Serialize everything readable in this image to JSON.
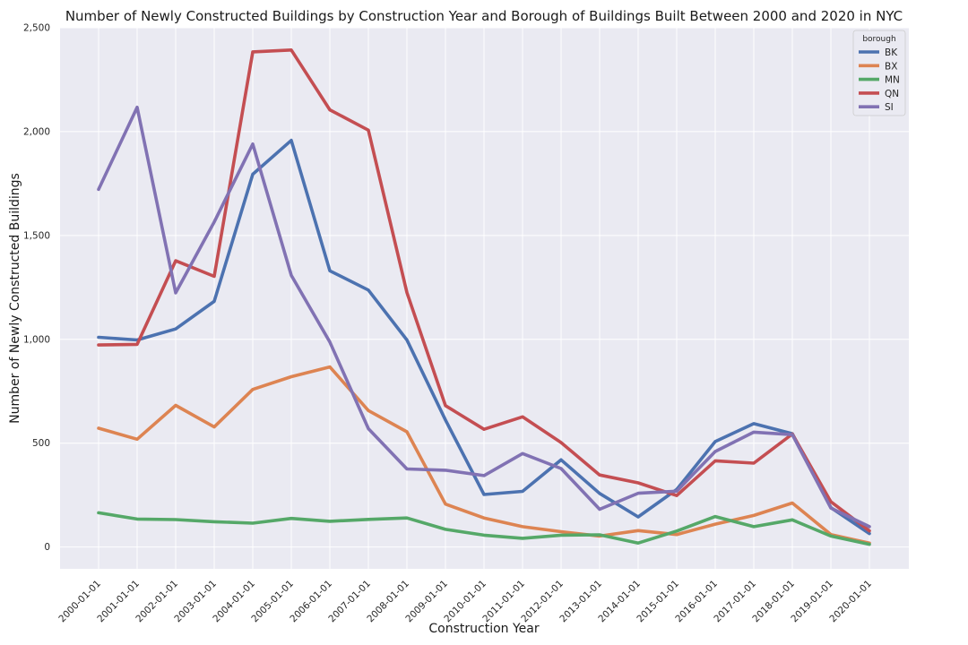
{
  "chart_data": {
    "type": "line",
    "title": "Number of Newly Constructed Buildings by Construction Year and Borough of Buildings Built Between 2000 and 2020 in NYC",
    "xlabel": "Construction Year",
    "ylabel": "Number of Newly Constructed Buildings",
    "categories": [
      "2000-01-01",
      "2001-01-01",
      "2002-01-01",
      "2003-01-01",
      "2004-01-01",
      "2005-01-01",
      "2006-01-01",
      "2007-01-01",
      "2008-01-01",
      "2009-01-01",
      "2010-01-01",
      "2011-01-01",
      "2012-01-01",
      "2013-01-01",
      "2014-01-01",
      "2015-01-01",
      "2016-01-01",
      "2017-01-01",
      "2018-01-01",
      "2019-01-01",
      "2020-01-01"
    ],
    "ylim": [
      -105,
      2500
    ],
    "yticks": [
      0,
      500,
      1000,
      1500,
      2000,
      2500
    ],
    "ytick_labels": [
      "0",
      "500",
      "1,000",
      "1,500",
      "2,000",
      "2,500"
    ],
    "grid": true,
    "legend": {
      "title": "borough",
      "placement": "top-right"
    },
    "series": [
      {
        "name": "BK",
        "color": "#4c72b0",
        "values": [
          1010,
          997,
          1050,
          1183,
          1795,
          1958,
          1330,
          1237,
          997,
          612,
          253,
          268,
          420,
          258,
          145,
          277,
          508,
          594,
          546,
          190,
          65
        ]
      },
      {
        "name": "BX",
        "color": "#dd8452",
        "values": [
          572,
          519,
          682,
          578,
          759,
          820,
          867,
          657,
          555,
          207,
          140,
          98,
          74,
          53,
          79,
          60,
          110,
          152,
          212,
          60,
          19
        ]
      },
      {
        "name": "MN",
        "color": "#55a868",
        "values": [
          165,
          135,
          132,
          122,
          115,
          138,
          124,
          133,
          140,
          85,
          57,
          42,
          57,
          59,
          19,
          77,
          147,
          98,
          131,
          53,
          13
        ]
      },
      {
        "name": "QN",
        "color": "#c44e52",
        "values": [
          973,
          976,
          1378,
          1303,
          2384,
          2393,
          2105,
          2007,
          1225,
          681,
          567,
          627,
          503,
          347,
          309,
          248,
          415,
          404,
          544,
          218,
          78
        ]
      },
      {
        "name": "SI",
        "color": "#8172b3",
        "values": [
          1722,
          2117,
          1224,
          1565,
          1940,
          1308,
          987,
          570,
          376,
          370,
          344,
          450,
          378,
          182,
          259,
          269,
          460,
          553,
          541,
          188,
          98
        ]
      }
    ]
  }
}
